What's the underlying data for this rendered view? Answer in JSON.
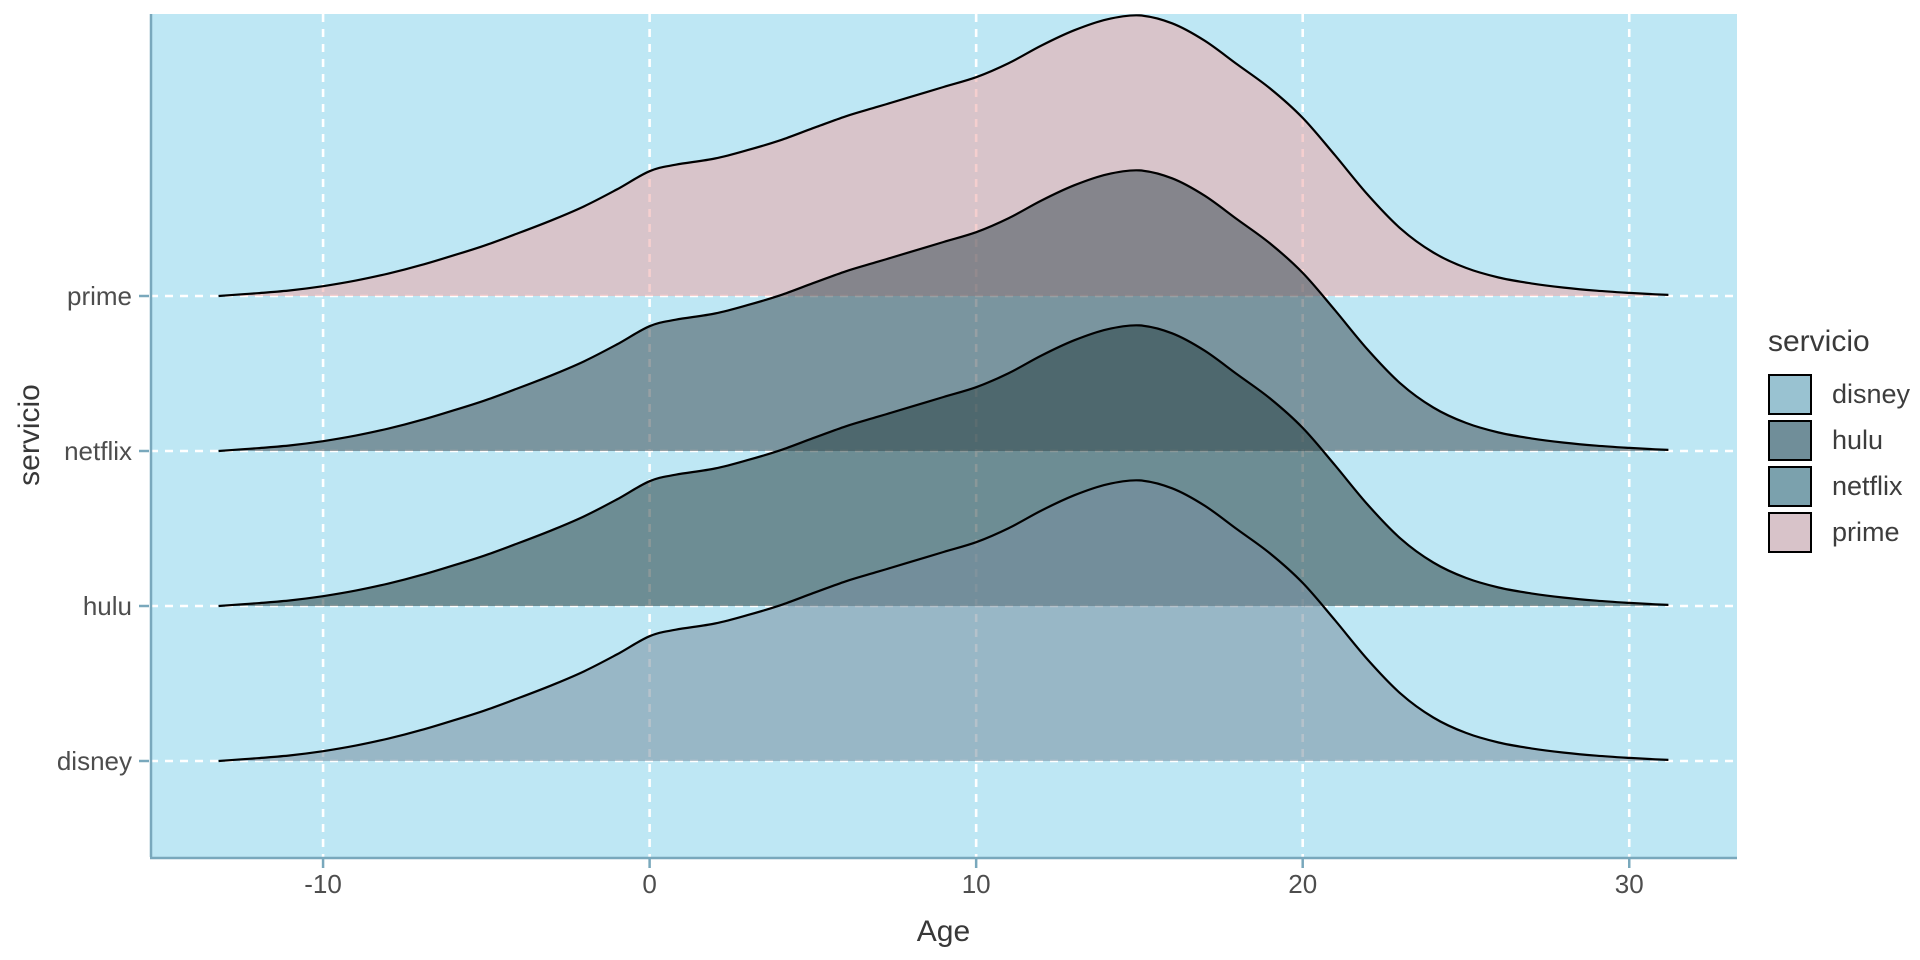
{
  "figure": {
    "background": "#FFFFFF"
  },
  "axes": {
    "x_title": "Age",
    "y_title": "servicio"
  },
  "legend": {
    "title": "servicio",
    "entries": [
      {
        "label": "disney",
        "color": "#99C2D1"
      },
      {
        "label": "hulu",
        "color": "#708E99"
      },
      {
        "label": "netflix",
        "color": "#7BA1AD"
      },
      {
        "label": "prime",
        "color": "#D8C3C9"
      }
    ]
  },
  "chart_data": {
    "type": "area",
    "variant": "ridgeline-density",
    "title": "",
    "xlabel": "Age",
    "ylabel": "servicio",
    "x_ticks": [
      -10,
      0,
      10,
      20,
      30
    ],
    "x_axis_range": [
      -15.3,
      33.3
    ],
    "categories": [
      {
        "label": "disney",
        "row": 1,
        "fill": "#7890A0"
      },
      {
        "label": "hulu",
        "row": 2,
        "fill": "#294346"
      },
      {
        "label": "netflix",
        "row": 3,
        "fill": "#41525A"
      },
      {
        "label": "prime",
        "row": 4,
        "fill": "#ECA7A8"
      }
    ],
    "fill_alpha": 0.55,
    "outline_color": "#000000",
    "panel_bg": "#BEE7F4",
    "grid_color": "#FFFFFF",
    "axis_line_color": "#79A8BC",
    "tick_text_color": "#4D4D4D",
    "age_min": -13.2,
    "age_max": 31.2,
    "peak_age": 15,
    "peak_height_rows": 1.81,
    "density_profile": [
      [
        -13.2,
        0.0
      ],
      [
        -12.5,
        0.006
      ],
      [
        -12,
        0.01
      ],
      [
        -11,
        0.02
      ],
      [
        -10,
        0.035
      ],
      [
        -9,
        0.055
      ],
      [
        -8,
        0.08
      ],
      [
        -7,
        0.11
      ],
      [
        -6,
        0.145
      ],
      [
        -5,
        0.182
      ],
      [
        -4,
        0.225
      ],
      [
        -3,
        0.27
      ],
      [
        -2,
        0.32
      ],
      [
        -1,
        0.38
      ],
      [
        0,
        0.445
      ],
      [
        0.8,
        0.468
      ],
      [
        2,
        0.49
      ],
      [
        3,
        0.52
      ],
      [
        4,
        0.555
      ],
      [
        5,
        0.598
      ],
      [
        6,
        0.64
      ],
      [
        7,
        0.675
      ],
      [
        8,
        0.71
      ],
      [
        9,
        0.745
      ],
      [
        10,
        0.78
      ],
      [
        11,
        0.83
      ],
      [
        12,
        0.893
      ],
      [
        13,
        0.947
      ],
      [
        14,
        0.986
      ],
      [
        15,
        1.0
      ],
      [
        16,
        0.972
      ],
      [
        17,
        0.91
      ],
      [
        18,
        0.825
      ],
      [
        19,
        0.74
      ],
      [
        20,
        0.635
      ],
      [
        21,
        0.5
      ],
      [
        22,
        0.36
      ],
      [
        23,
        0.24
      ],
      [
        24,
        0.155
      ],
      [
        25,
        0.1
      ],
      [
        26,
        0.066
      ],
      [
        27,
        0.045
      ],
      [
        28,
        0.03
      ],
      [
        29,
        0.019
      ],
      [
        30,
        0.011
      ],
      [
        30.8,
        0.006
      ],
      [
        31.2,
        0.004
      ]
    ]
  }
}
